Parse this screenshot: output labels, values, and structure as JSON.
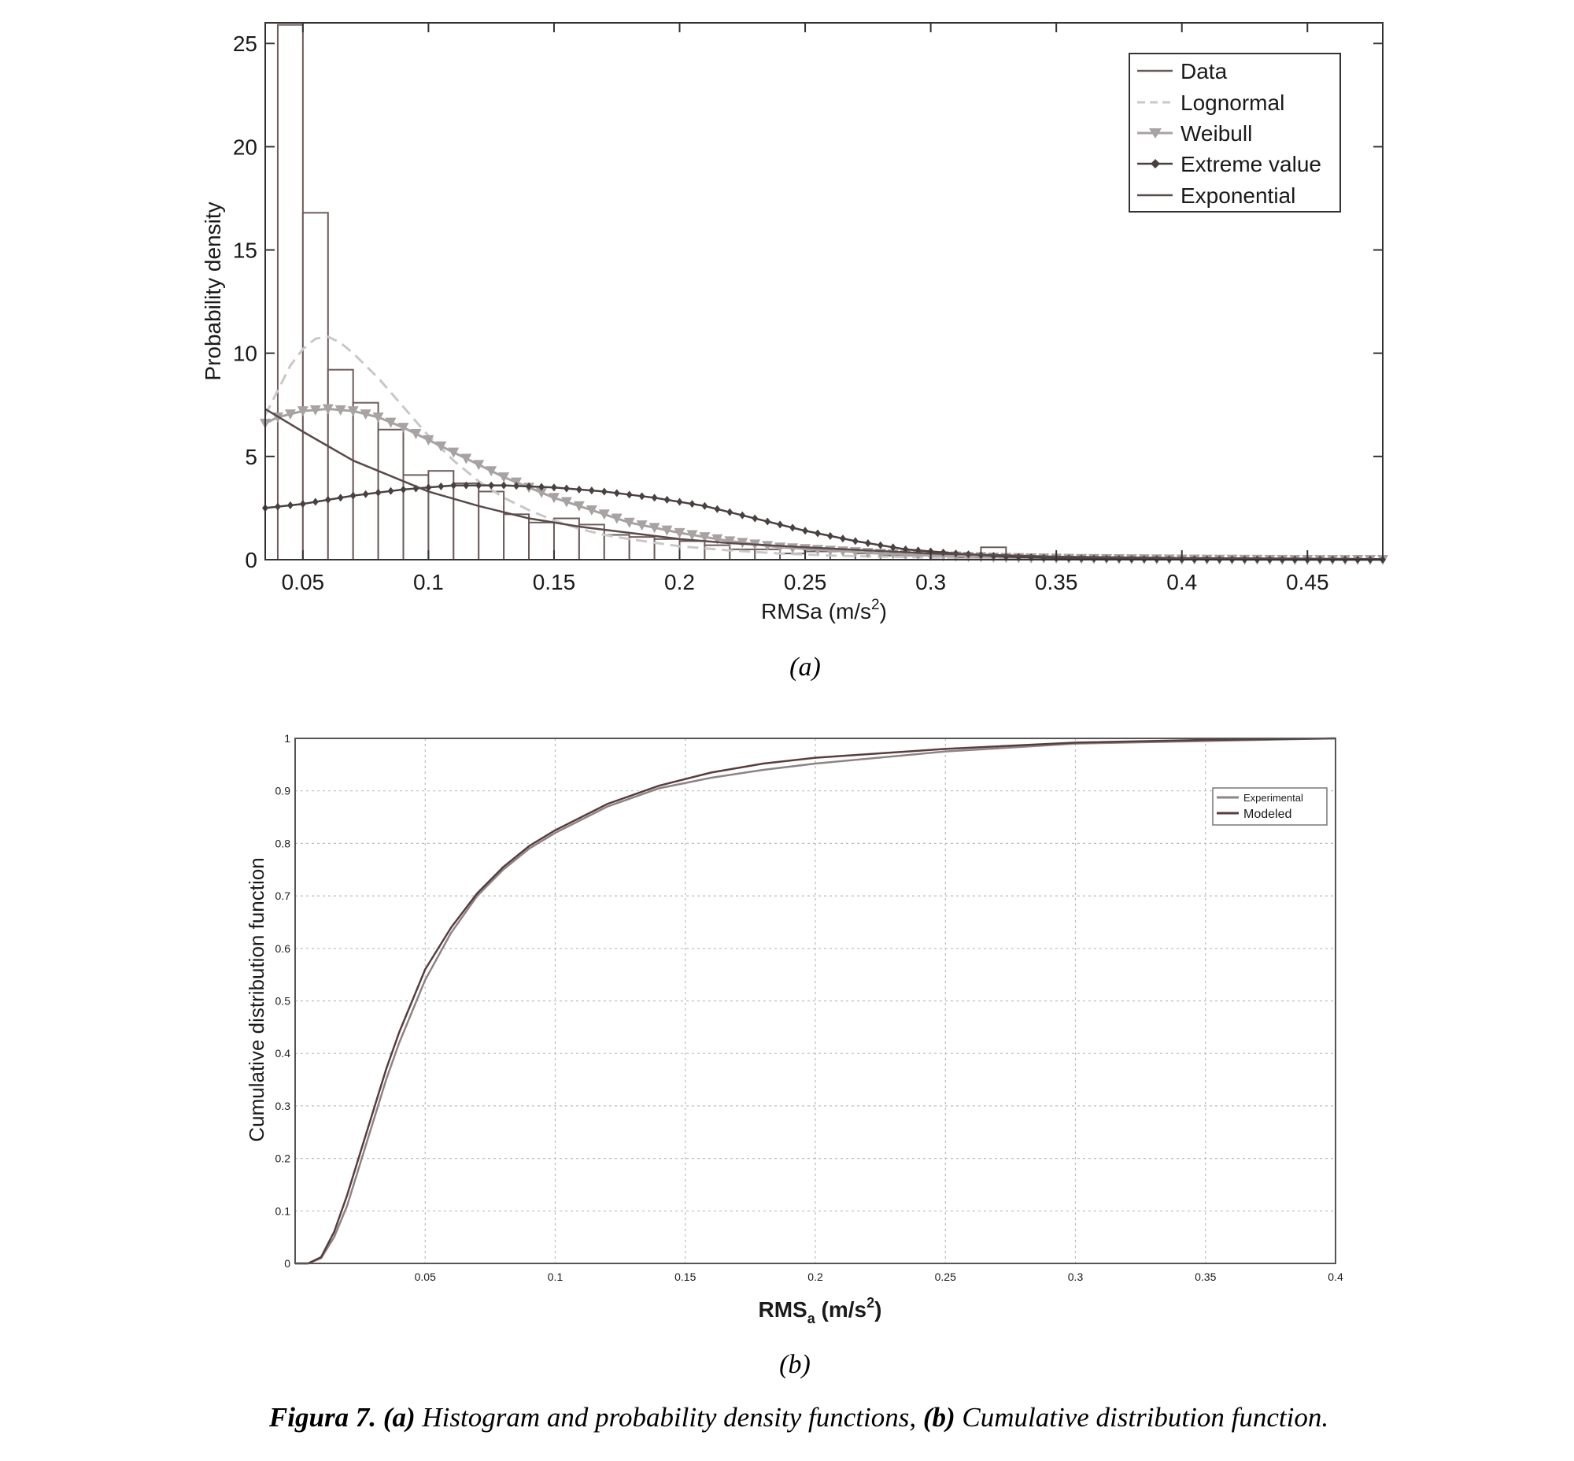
{
  "chart_data": [
    {
      "type": "bar",
      "panel_label": "(a)",
      "xlabel": "RMSa (m/s",
      "xlabel_sup": "2",
      "xlabel_tail": ")",
      "ylabel": "Probability density",
      "xlim": [
        0.035,
        0.48
      ],
      "ylim": [
        0,
        26
      ],
      "xticks": [
        0.05,
        0.1,
        0.15,
        0.2,
        0.25,
        0.3,
        0.35,
        0.4,
        0.45
      ],
      "xtick_labels": [
        "0.05",
        "0.1",
        "0.15",
        "0.2",
        "0.25",
        "0.3",
        "0.35",
        "0.4",
        "0.45"
      ],
      "yticks": [
        0,
        5,
        10,
        15,
        20,
        25
      ],
      "ytick_labels": [
        "0",
        "5",
        "10",
        "15",
        "20",
        "25"
      ],
      "grid": false,
      "legend_position": "top-right",
      "legend": [
        "Data",
        "Lognormal",
        "Weibull",
        "Extreme value",
        "Exponential"
      ],
      "histogram": {
        "name": "Data",
        "bin_edges": [
          0.04,
          0.05,
          0.06,
          0.07,
          0.08,
          0.09,
          0.1,
          0.11,
          0.12,
          0.13,
          0.14,
          0.15,
          0.16,
          0.17,
          0.18,
          0.19,
          0.2,
          0.21,
          0.22,
          0.23,
          0.24,
          0.25,
          0.26,
          0.27,
          0.28,
          0.29,
          0.3,
          0.31,
          0.32,
          0.33,
          0.34
        ],
        "values": [
          25.9,
          16.8,
          9.2,
          7.6,
          6.3,
          4.1,
          4.3,
          3.7,
          3.3,
          2.2,
          1.8,
          2.0,
          1.7,
          1.2,
          1.1,
          1.0,
          0.9,
          0.7,
          0.5,
          0.5,
          0.3,
          0.4,
          0.4,
          0.3,
          0.2,
          0.2,
          0.2,
          0.1,
          0.6,
          0.2
        ]
      },
      "series": [
        {
          "name": "Lognormal",
          "style": "dashed",
          "color": "#c8c8c8",
          "x": [
            0.035,
            0.04,
            0.045,
            0.05,
            0.055,
            0.06,
            0.065,
            0.07,
            0.08,
            0.09,
            0.1,
            0.11,
            0.12,
            0.13,
            0.14,
            0.15,
            0.16,
            0.17,
            0.18,
            0.2,
            0.22,
            0.24,
            0.26,
            0.3,
            0.35,
            0.4,
            0.48
          ],
          "y": [
            7.0,
            8.2,
            9.4,
            10.2,
            10.7,
            10.8,
            10.5,
            10.0,
            8.8,
            7.4,
            6.0,
            4.8,
            3.8,
            3.0,
            2.4,
            1.9,
            1.5,
            1.2,
            1.0,
            0.65,
            0.45,
            0.3,
            0.2,
            0.1,
            0.05,
            0.02,
            0.0
          ]
        },
        {
          "name": "Weibull",
          "style": "triangle-markers",
          "color": "#a8a2a2",
          "x": [
            0.035,
            0.04,
            0.05,
            0.06,
            0.07,
            0.08,
            0.09,
            0.1,
            0.11,
            0.12,
            0.13,
            0.14,
            0.15,
            0.16,
            0.17,
            0.18,
            0.2,
            0.22,
            0.24,
            0.26,
            0.28,
            0.3,
            0.33,
            0.36,
            0.4,
            0.45,
            0.48
          ],
          "y": [
            6.6,
            6.9,
            7.2,
            7.3,
            7.2,
            6.9,
            6.4,
            5.8,
            5.2,
            4.6,
            4.0,
            3.5,
            3.0,
            2.6,
            2.2,
            1.8,
            1.3,
            0.9,
            0.6,
            0.45,
            0.3,
            0.2,
            0.1,
            0.05,
            0.02,
            0.0,
            0.0
          ]
        },
        {
          "name": "Extreme value",
          "style": "diamond-markers",
          "color": "#4a4040",
          "x": [
            0.035,
            0.05,
            0.07,
            0.09,
            0.11,
            0.13,
            0.15,
            0.17,
            0.19,
            0.21,
            0.23,
            0.25,
            0.27,
            0.29,
            0.31,
            0.33,
            0.35,
            0.38,
            0.42,
            0.48
          ],
          "y": [
            2.5,
            2.7,
            3.1,
            3.4,
            3.6,
            3.6,
            3.5,
            3.3,
            3.0,
            2.6,
            2.0,
            1.4,
            0.9,
            0.5,
            0.3,
            0.15,
            0.08,
            0.03,
            0.01,
            0.0
          ]
        },
        {
          "name": "Exponential",
          "style": "solid",
          "color": "#5a4a4a",
          "x": [
            0.035,
            0.05,
            0.06,
            0.07,
            0.08,
            0.09,
            0.1,
            0.12,
            0.14,
            0.16,
            0.18,
            0.2,
            0.22,
            0.25,
            0.3,
            0.35,
            0.4,
            0.48
          ],
          "y": [
            7.3,
            6.2,
            5.5,
            4.8,
            4.3,
            3.8,
            3.3,
            2.6,
            2.0,
            1.6,
            1.3,
            1.0,
            0.8,
            0.6,
            0.3,
            0.15,
            0.08,
            0.03
          ]
        }
      ]
    },
    {
      "type": "line",
      "panel_label": "(b)",
      "xlabel": "RMS",
      "xlabel_sub": "a",
      "xlabel_tail": " (m/s",
      "xlabel_sup": "2",
      "xlabel_close": ")",
      "ylabel": "Cumulative distribution function",
      "xlim": [
        0,
        0.4
      ],
      "ylim": [
        0,
        1
      ],
      "xticks": [
        0.05,
        0.1,
        0.15,
        0.2,
        0.25,
        0.3,
        0.35,
        0.4
      ],
      "xtick_labels": [
        "0.05",
        "0.1",
        "0.15",
        "0.2",
        "0.25",
        "0.3",
        "0.35",
        "0.4"
      ],
      "yticks": [
        0,
        0.1,
        0.2,
        0.3,
        0.4,
        0.5,
        0.6,
        0.7,
        0.8,
        0.9,
        1
      ],
      "ytick_labels": [
        "0",
        "0.1",
        "0.2",
        "0.3",
        "0.4",
        "0.5",
        "0.6",
        "0.7",
        "0.8",
        "0.9",
        "1"
      ],
      "grid": true,
      "legend_position": "top-right",
      "legend": [
        "Experimental",
        "Modeled"
      ],
      "series": [
        {
          "name": "Experimental",
          "color": "#8c8484",
          "x": [
            0,
            0.005,
            0.01,
            0.015,
            0.02,
            0.025,
            0.03,
            0.035,
            0.04,
            0.045,
            0.05,
            0.06,
            0.07,
            0.08,
            0.09,
            0.1,
            0.12,
            0.14,
            0.16,
            0.18,
            0.2,
            0.25,
            0.3,
            0.35,
            0.4
          ],
          "y": [
            0,
            0,
            0.01,
            0.05,
            0.11,
            0.19,
            0.27,
            0.35,
            0.42,
            0.48,
            0.54,
            0.63,
            0.7,
            0.75,
            0.79,
            0.82,
            0.87,
            0.905,
            0.925,
            0.94,
            0.952,
            0.975,
            0.99,
            0.995,
            1.0
          ]
        },
        {
          "name": "Modeled",
          "color": "#5a3c3c",
          "x": [
            0,
            0.005,
            0.01,
            0.015,
            0.02,
            0.025,
            0.03,
            0.035,
            0.04,
            0.045,
            0.05,
            0.06,
            0.07,
            0.08,
            0.09,
            0.1,
            0.12,
            0.14,
            0.16,
            0.18,
            0.2,
            0.25,
            0.3,
            0.35,
            0.4
          ],
          "y": [
            0,
            0,
            0.012,
            0.06,
            0.13,
            0.21,
            0.29,
            0.37,
            0.44,
            0.5,
            0.56,
            0.64,
            0.705,
            0.755,
            0.795,
            0.825,
            0.875,
            0.91,
            0.935,
            0.952,
            0.963,
            0.98,
            0.992,
            0.997,
            1.0
          ]
        }
      ]
    }
  ],
  "caption": {
    "figure_label": "Figura 7.",
    "part_a_label": "(a)",
    "part_a_text": " Histogram and probability density functions, ",
    "part_b_label": "(b)",
    "part_b_text": " Cumulative distribution function."
  }
}
